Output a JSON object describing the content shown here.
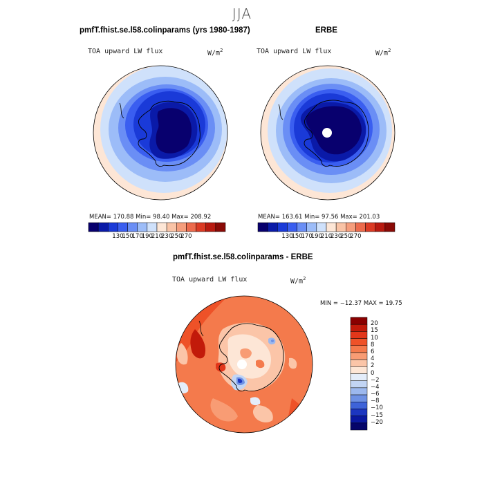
{
  "figure": {
    "season": "JJA"
  },
  "panels": [
    {
      "title": "pmfT.fhist.se.l58.colinparams (yrs 1980-1987)",
      "variable": "TOA upward LW flux",
      "units_base": "W/m",
      "units_exp": "2",
      "stats": "MEAN= 170.88  Min=  98.40  Max= 208.92",
      "colorbar_ticks": [
        "130",
        "150",
        "170",
        "190",
        "210",
        "230",
        "250",
        "270"
      ]
    },
    {
      "title": "ERBE",
      "variable": "TOA upward LW flux",
      "units_base": "W/m",
      "units_exp": "2",
      "stats": "MEAN= 163.61  Min=  97.56  Max= 201.03",
      "colorbar_ticks": [
        "130",
        "150",
        "170",
        "190",
        "210",
        "230",
        "250",
        "270"
      ]
    }
  ],
  "difference": {
    "title": "pmfT.fhist.se.l58.colinparams - ERBE",
    "variable": "TOA upward LW flux",
    "units_base": "W/m",
    "units_exp": "2",
    "stats": "MIN = −12.37 MAX =  19.75",
    "colorbar_ticks": [
      "20",
      "15",
      "10",
      "8",
      "6",
      "4",
      "2",
      "0",
      "−2",
      "−4",
      "−6",
      "−8",
      "−10",
      "−15",
      "−20"
    ]
  },
  "colors": {
    "abs_scale": [
      "#08006e",
      "#0a1aa8",
      "#1a3ad8",
      "#3a5ef0",
      "#6a8ef5",
      "#9cbcf8",
      "#cfe1fb",
      "#fde6d6",
      "#f9c3a6",
      "#f59d7c",
      "#ec6a4c",
      "#db3a24",
      "#b81a10",
      "#8a0a06"
    ],
    "diff_scale": [
      "#8a0000",
      "#c21a0a",
      "#e2361a",
      "#ee5228",
      "#f47a4c",
      "#f89c74",
      "#fbc5a8",
      "#fde6d6",
      "#e4edfa",
      "#c2d5f4",
      "#9cb8ee",
      "#6e91e4",
      "#3e63d8",
      "#1c36c0",
      "#0a18a0",
      "#05056a"
    ]
  }
}
